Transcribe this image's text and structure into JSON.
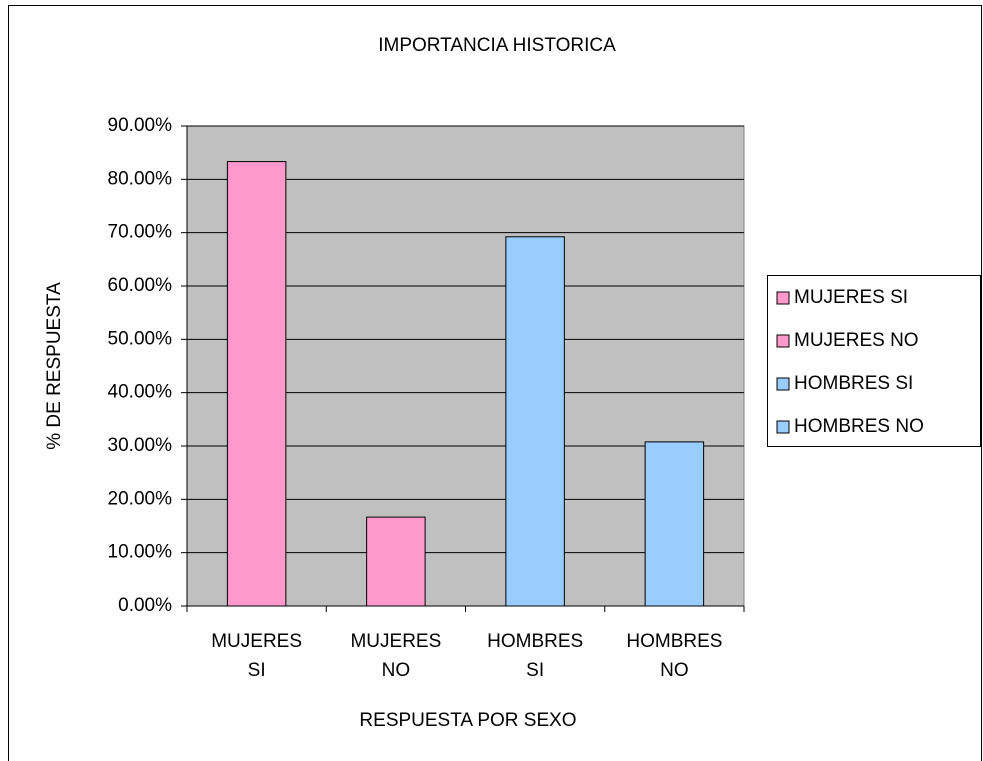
{
  "chart_data": {
    "type": "bar",
    "title": "IMPORTANCIA HISTORICA",
    "x_label": "RESPUESTA POR SEXO",
    "y_label": "% DE RESPUESTA",
    "categories": [
      "MUJERES SI",
      "MUJERES NO",
      "HOMBRES SI",
      "HOMBRES NO"
    ],
    "values": [
      83.33,
      16.67,
      69.23,
      30.77
    ],
    "colors": [
      "#ff99cc",
      "#ff99cc",
      "#99ccff",
      "#99ccff"
    ],
    "ylim": [
      0,
      90
    ],
    "yticks": [
      {
        "value": 0,
        "label": "0.00%"
      },
      {
        "value": 10,
        "label": "10.00%"
      },
      {
        "value": 20,
        "label": "20.00%"
      },
      {
        "value": 30,
        "label": "30.00%"
      },
      {
        "value": 40,
        "label": "40.00%"
      },
      {
        "value": 50,
        "label": "50.00%"
      },
      {
        "value": 60,
        "label": "60.00%"
      },
      {
        "value": 70,
        "label": "70.00%"
      },
      {
        "value": 80,
        "label": "80.00%"
      },
      {
        "value": 90,
        "label": "90.00%"
      }
    ],
    "grid": true,
    "plot_background": "#c0c0c0",
    "legend": "right"
  }
}
